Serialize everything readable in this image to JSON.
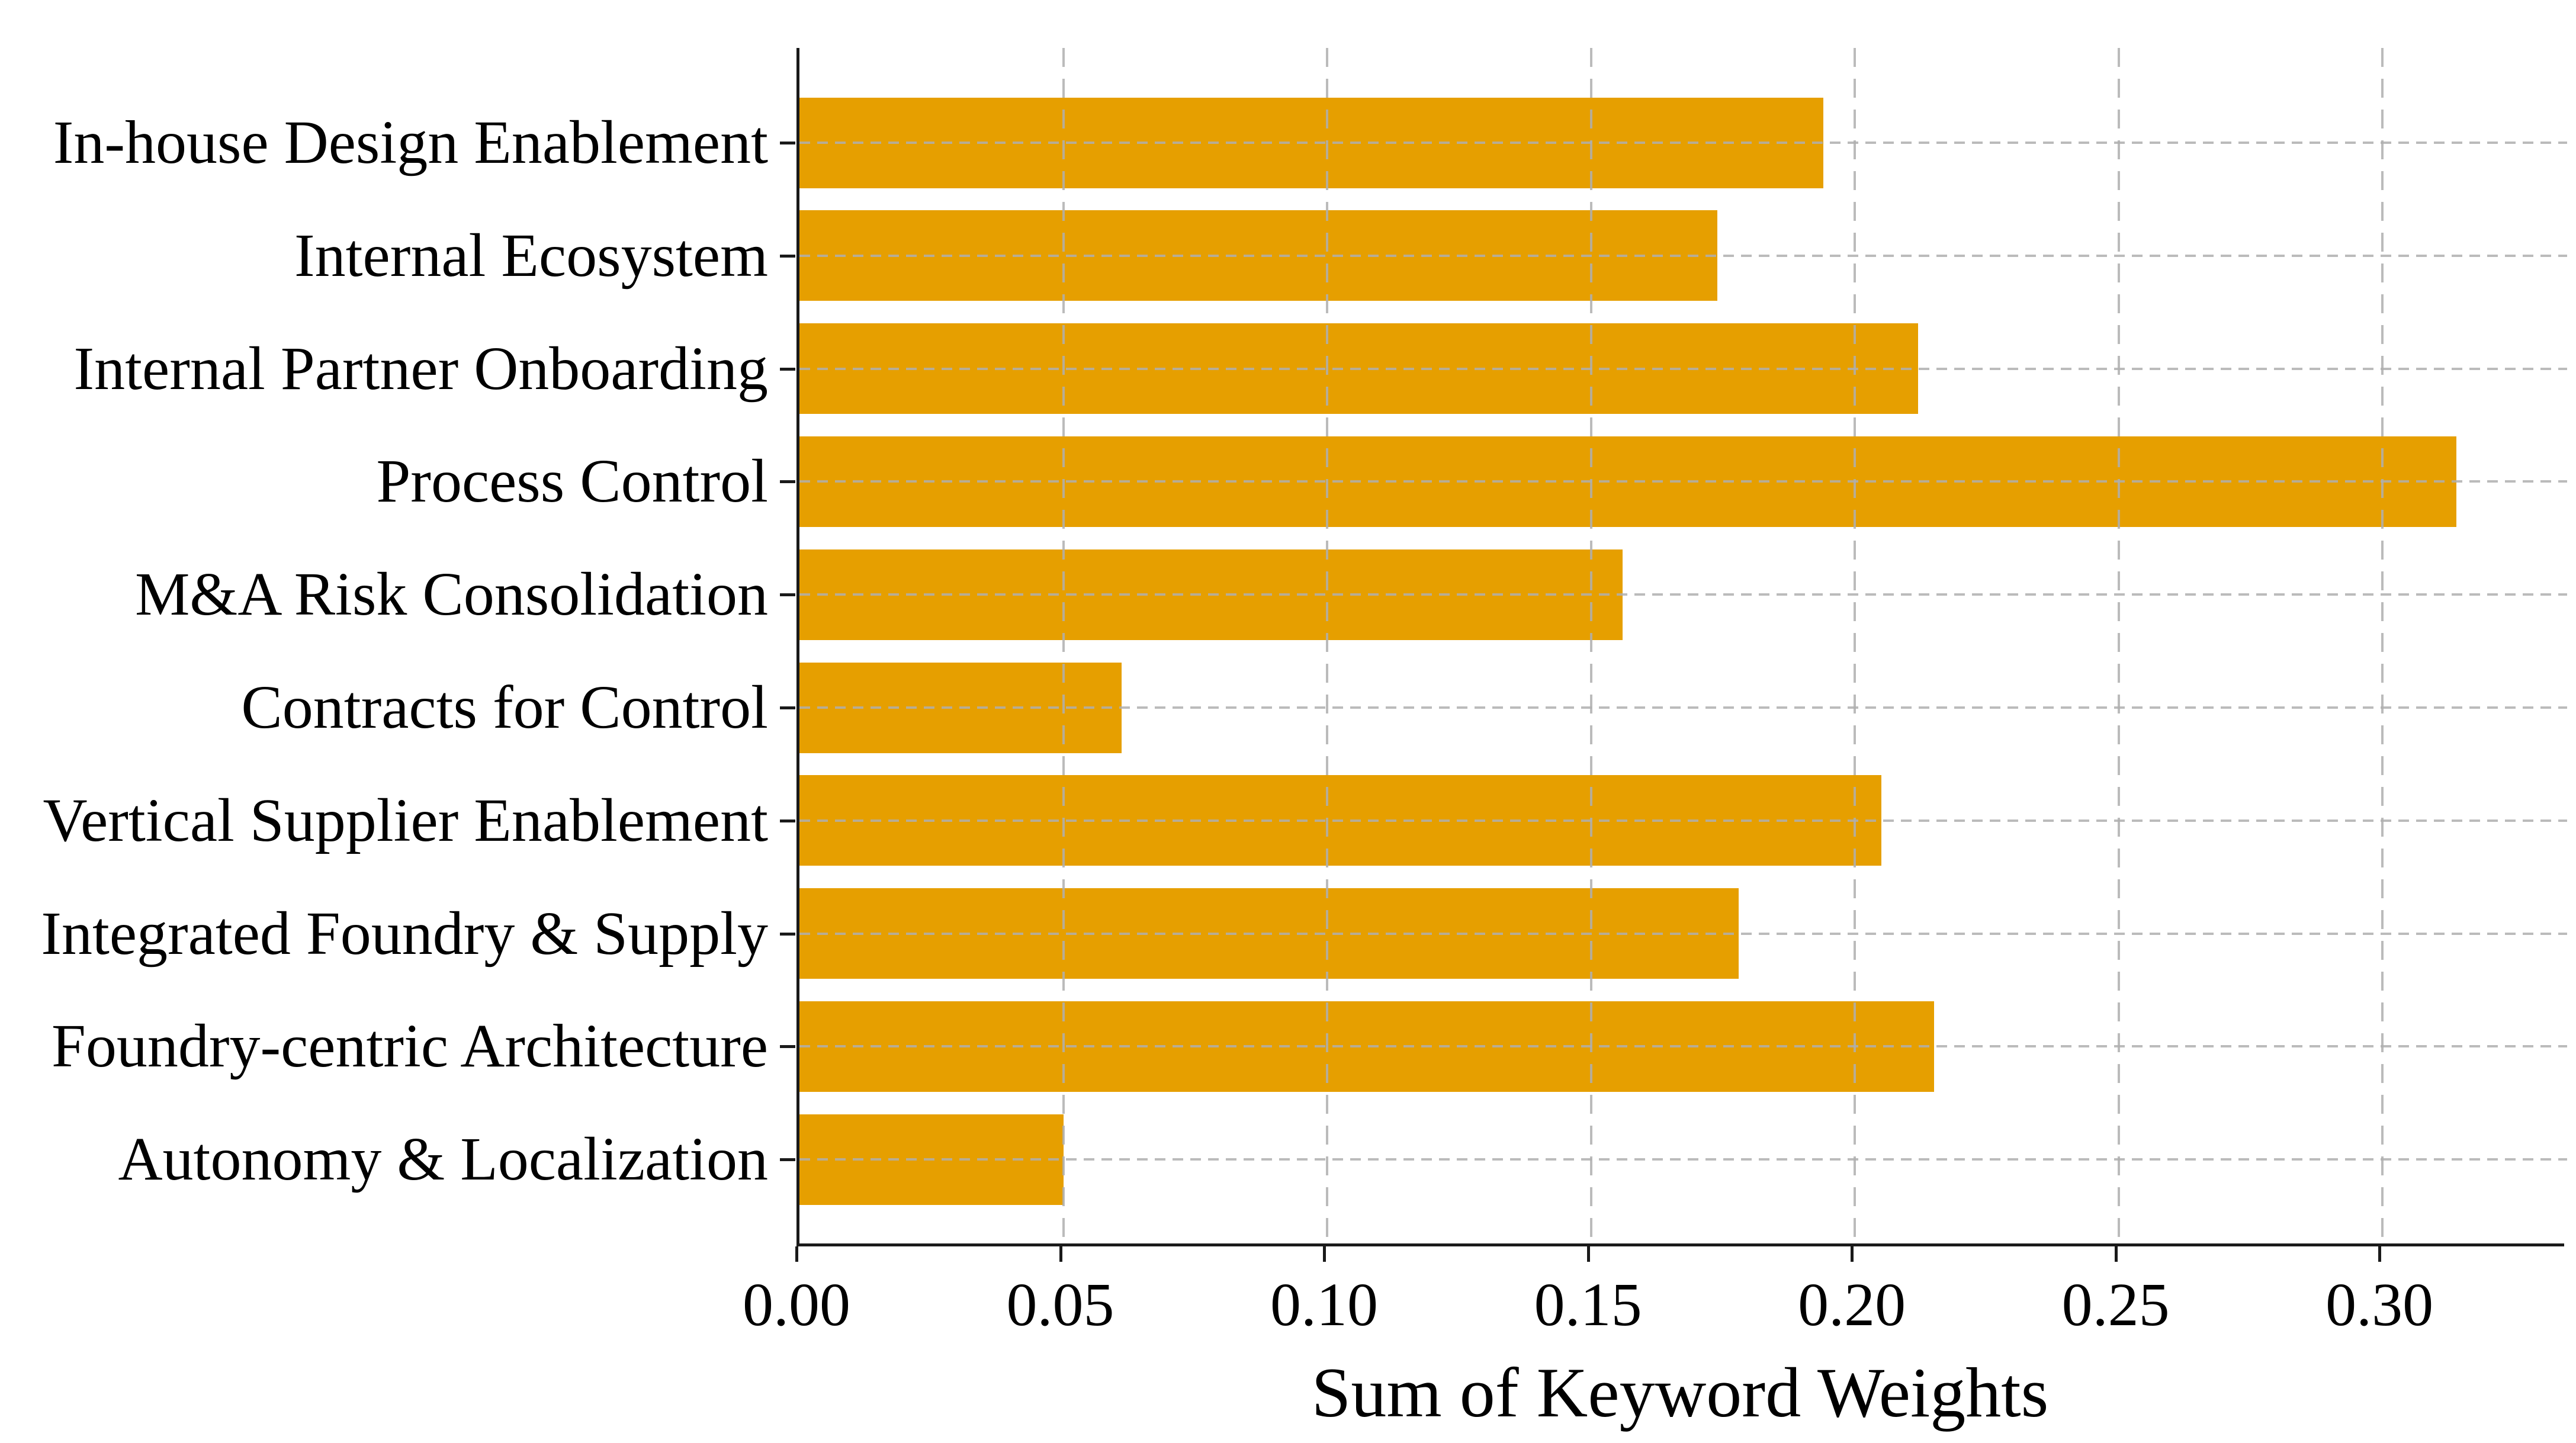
{
  "figure": {
    "background": "#ffffff",
    "bar_color": "#E69F00",
    "grid_color": "rgba(175,175,175,0.85)",
    "spine_color": "#1a1a1a"
  },
  "chart_data": {
    "type": "bar",
    "orientation": "horizontal",
    "title": "",
    "xlabel": "Sum of Keyword Weights",
    "ylabel": "",
    "categories": [
      "In-house Design Enablement",
      "Internal Ecosystem",
      "Internal Partner Onboarding",
      "Process Control",
      "M&A Risk Consolidation",
      "Contracts for Control",
      "Vertical Supplier Enablement",
      "Integrated Foundry & Supply",
      "Foundry-centric Architecture",
      "Autonomy & Localization"
    ],
    "values": [
      0.194,
      0.174,
      0.212,
      0.314,
      0.156,
      0.061,
      0.205,
      0.178,
      0.215,
      0.05
    ],
    "x_ticks": [
      0.0,
      0.05,
      0.1,
      0.15,
      0.2,
      0.25,
      0.3
    ],
    "x_tick_labels": [
      "0.00",
      "0.05",
      "0.10",
      "0.15",
      "0.20",
      "0.25",
      "0.30"
    ],
    "xlim": [
      0,
      0.335
    ],
    "grid": "dashed, both axes, drawn above bars",
    "legend": "none"
  }
}
